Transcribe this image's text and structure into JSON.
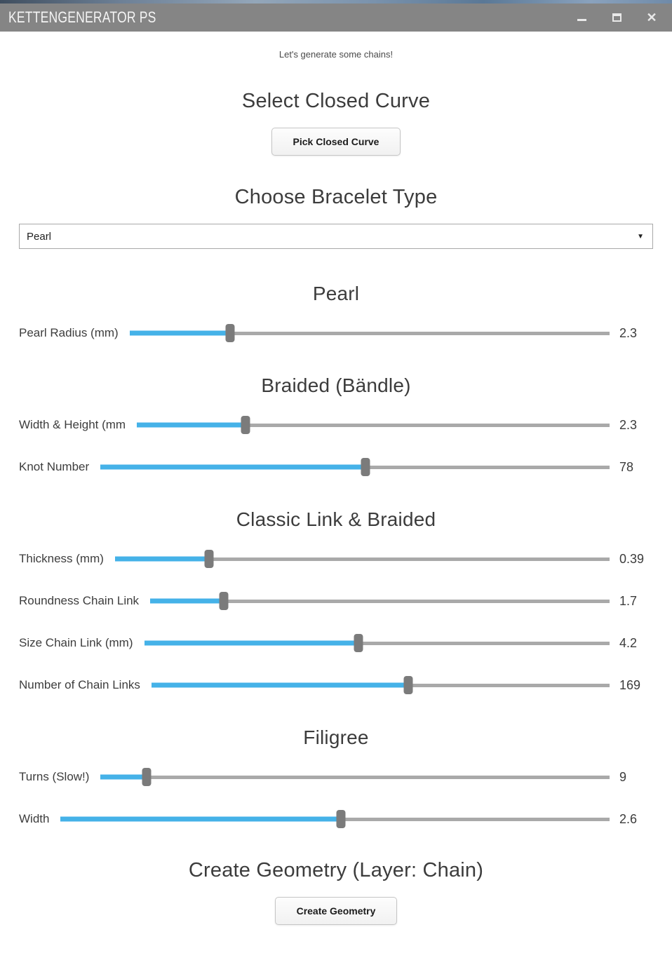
{
  "window": {
    "title": "KETTENGENERATOR PS",
    "controls": {
      "minimize": "minimize",
      "maximize": "maximize",
      "close": "close"
    }
  },
  "intro": {
    "text": "Let's generate some chains!"
  },
  "curve_section": {
    "heading": "Select Closed Curve",
    "button_label": "Pick Closed Curve"
  },
  "bracelet_type": {
    "heading": "Choose Bracelet Type",
    "selected": "Pearl",
    "dropdown_icon": "▼"
  },
  "sections": [
    {
      "heading": "Pearl",
      "sliders": [
        {
          "label": "Pearl Radius (mm)",
          "value": "2.3",
          "fill_pct": 21
        }
      ]
    },
    {
      "heading": "Braided (Bändle)",
      "sliders": [
        {
          "label": "Width & Height (mm",
          "value": "2.3",
          "fill_pct": 23
        },
        {
          "label": "Knot Number",
          "value": "78",
          "fill_pct": 52
        }
      ]
    },
    {
      "heading": "Classic Link & Braided",
      "sliders": [
        {
          "label": "Thickness (mm)",
          "value": "0.39",
          "fill_pct": 19
        },
        {
          "label": "Roundness Chain Link",
          "value": "1.7",
          "fill_pct": 16
        },
        {
          "label": "Size Chain Link (mm)",
          "value": "4.2",
          "fill_pct": 46
        },
        {
          "label": "Number of Chain Links",
          "value": "169",
          "fill_pct": 56
        }
      ]
    },
    {
      "heading": "Filigree",
      "sliders": [
        {
          "label": "Turns (Slow!)",
          "value": "9",
          "fill_pct": 9
        },
        {
          "label": "Width",
          "value": "2.6",
          "fill_pct": 51
        }
      ]
    }
  ],
  "create_section": {
    "heading": "Create Geometry (Layer: Chain)",
    "button_label": "Create Geometry"
  },
  "colors": {
    "accent_blue": "#45b2e8",
    "track_gray": "#a9a9a9",
    "thumb_gray": "#7b7b7b",
    "titlebar_gray": "#858585"
  }
}
